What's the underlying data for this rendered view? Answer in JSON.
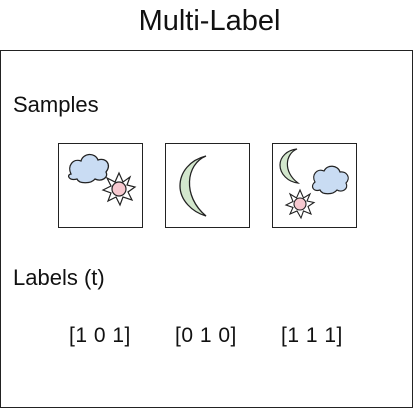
{
  "title": "Multi-Label",
  "samples_label": "Samples",
  "labels_label": "Labels (t)",
  "samples": [
    {
      "icons": [
        "cloud-icon",
        "sun-icon"
      ],
      "label": "[1 0 1]"
    },
    {
      "icons": [
        "moon-icon"
      ],
      "label": "[0 1 0]"
    },
    {
      "icons": [
        "moon-icon",
        "cloud-icon",
        "sun-icon"
      ],
      "label": "[1 1 1]"
    }
  ],
  "colors": {
    "cloud_fill": "#c9dcf3",
    "sun_fill": "#f7c9d0",
    "moon_fill": "#d3e7cd",
    "stroke": "#222222"
  }
}
